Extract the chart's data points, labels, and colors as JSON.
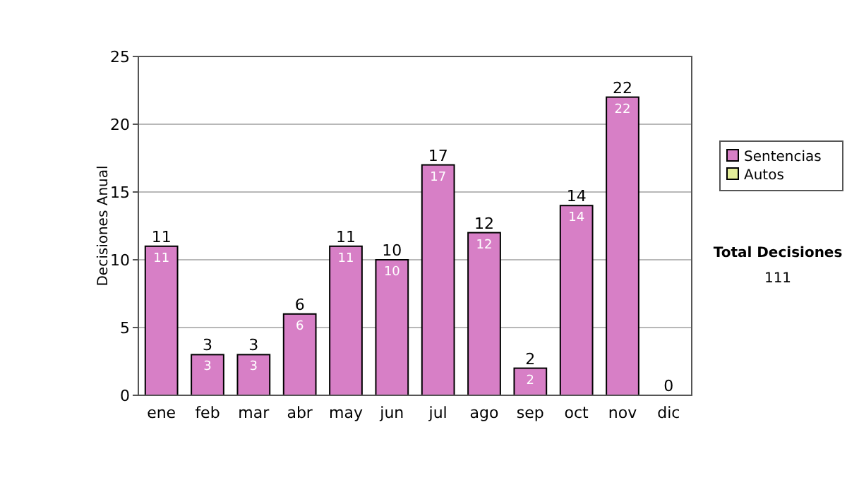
{
  "chart_data": {
    "type": "bar",
    "stacked": true,
    "ylabel": "Decisiones Anual",
    "categories": [
      "ene",
      "feb",
      "mar",
      "abr",
      "may",
      "jun",
      "jul",
      "ago",
      "sep",
      "oct",
      "nov",
      "dic"
    ],
    "series": [
      {
        "name": "Sentencias",
        "color": "#d77fc6",
        "values": [
          11,
          3,
          3,
          6,
          11,
          10,
          17,
          12,
          2,
          14,
          22,
          0
        ],
        "value_labels": [
          "11",
          "3",
          "3",
          "6",
          "11",
          "10",
          "17",
          "12",
          "2",
          "14",
          "22",
          null
        ]
      },
      {
        "name": "Autos",
        "color": "#e5ef9a",
        "values": [
          0,
          0,
          0,
          0,
          0,
          0,
          0,
          0,
          0,
          0,
          0,
          0
        ]
      }
    ],
    "totals": [
      "11",
      "3",
      "3",
      "6",
      "11",
      "10",
      "17",
      "12",
      "2",
      "14",
      "22",
      "0"
    ],
    "ylim": [
      0,
      25
    ],
    "yticks": [
      0,
      5,
      10,
      15,
      20,
      25
    ],
    "grid": "y",
    "legend": "right",
    "annotations": [
      "Total Decisiones",
      "111"
    ]
  }
}
